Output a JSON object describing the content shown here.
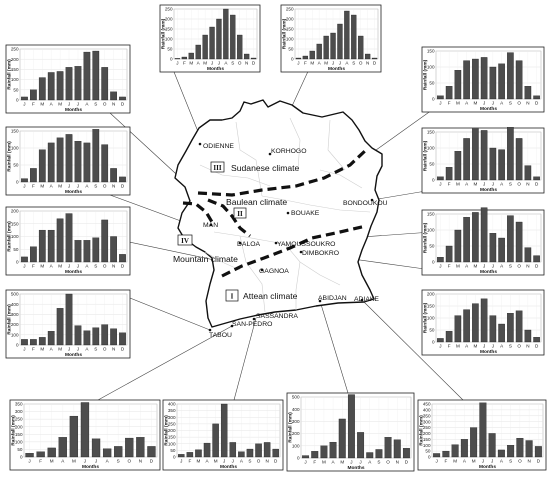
{
  "map": {
    "zones": [
      {
        "numeral": "III",
        "name": "Sudanese climate"
      },
      {
        "numeral": "II",
        "name": "Baulean climate"
      },
      {
        "numeral": "IV",
        "name": "Mountain climate"
      },
      {
        "numeral": "I",
        "name": "Attean climate"
      }
    ],
    "cities": [
      "ODIENNE",
      "KORHOGO",
      "BOUAKE",
      "BONDOUKOU",
      "MAN",
      "DALOA",
      "YAMOUSSOUKRO",
      "DIMBOKRO",
      "GAGNOA",
      "ABIDJAN",
      "ADIAKE",
      "SASSANDRA",
      "SAN-PEDRO",
      "TABOU"
    ]
  },
  "chart_data": [
    {
      "type": "bar",
      "station": "ODIENNE",
      "xlabel": "Months",
      "ylabel": "Rainfall (mm)",
      "ylim": [
        0,
        250
      ],
      "yticks": [
        0,
        50,
        100,
        150,
        200,
        250
      ],
      "categories": [
        "J",
        "F",
        "M",
        "A",
        "M",
        "J",
        "J",
        "A",
        "S",
        "O",
        "N",
        "D"
      ],
      "values": [
        3,
        10,
        30,
        70,
        120,
        160,
        200,
        250,
        220,
        120,
        25,
        5
      ]
    },
    {
      "type": "bar",
      "station": "KORHOGO",
      "xlabel": "Months",
      "ylabel": "Rainfall (mm)",
      "ylim": [
        0,
        250
      ],
      "yticks": [
        0,
        50,
        100,
        150,
        200,
        250
      ],
      "categories": [
        "J",
        "F",
        "M",
        "A",
        "M",
        "J",
        "J",
        "A",
        "S",
        "O",
        "N",
        "D"
      ],
      "values": [
        5,
        15,
        40,
        75,
        115,
        130,
        175,
        240,
        220,
        115,
        25,
        5
      ]
    },
    {
      "type": "bar",
      "station": "MAN",
      "xlabel": "Months",
      "ylabel": "Rainfall (mm)",
      "ylim": [
        0,
        250
      ],
      "yticks": [
        0,
        50,
        100,
        150,
        200,
        250
      ],
      "categories": [
        "J",
        "F",
        "M",
        "A",
        "M",
        "J",
        "J",
        "A",
        "S",
        "O",
        "N",
        "D"
      ],
      "values": [
        15,
        50,
        110,
        135,
        140,
        160,
        165,
        235,
        240,
        160,
        40,
        15
      ]
    },
    {
      "type": "bar",
      "station": "DALOA",
      "xlabel": "Months",
      "ylabel": "Rainfall (mm)",
      "ylim": [
        0,
        150
      ],
      "yticks": [
        0,
        50,
        100,
        150
      ],
      "categories": [
        "J",
        "F",
        "M",
        "A",
        "M",
        "J",
        "J",
        "A",
        "S",
        "O",
        "N",
        "D"
      ],
      "values": [
        10,
        40,
        95,
        115,
        130,
        140,
        120,
        115,
        155,
        110,
        40,
        15
      ]
    },
    {
      "type": "bar",
      "station": "GAGNOA",
      "xlabel": "Months",
      "ylabel": "Rainfall (mm)",
      "ylim": [
        0,
        200
      ],
      "yticks": [
        0,
        50,
        100,
        150,
        200
      ],
      "categories": [
        "J",
        "F",
        "M",
        "A",
        "M",
        "J",
        "J",
        "A",
        "S",
        "O",
        "N",
        "D"
      ],
      "values": [
        20,
        60,
        125,
        125,
        170,
        190,
        85,
        85,
        95,
        165,
        100,
        30
      ]
    },
    {
      "type": "bar",
      "station": "TABOU",
      "xlabel": "Months",
      "ylabel": "Rainfall (mm)",
      "ylim": [
        0,
        500
      ],
      "yticks": [
        0,
        100,
        200,
        300,
        400,
        500
      ],
      "categories": [
        "J",
        "F",
        "M",
        "A",
        "M",
        "J",
        "J",
        "A",
        "S",
        "O",
        "N",
        "D"
      ],
      "values": [
        55,
        55,
        75,
        135,
        360,
        500,
        190,
        140,
        170,
        200,
        160,
        120
      ]
    },
    {
      "type": "bar",
      "station": "BONDOUKOU",
      "xlabel": "Months",
      "ylabel": "Rainfall (mm)",
      "ylim": [
        0,
        150
      ],
      "yticks": [
        0,
        50,
        100,
        150
      ],
      "categories": [
        "J",
        "F",
        "M",
        "A",
        "M",
        "J",
        "J",
        "A",
        "S",
        "O",
        "N",
        "D"
      ],
      "values": [
        10,
        40,
        90,
        120,
        125,
        130,
        100,
        110,
        145,
        120,
        40,
        10
      ]
    },
    {
      "type": "bar",
      "station": "BOUAKE",
      "xlabel": "Months",
      "ylabel": "Rainfall (mm)",
      "ylim": [
        0,
        150
      ],
      "yticks": [
        0,
        50,
        100,
        150
      ],
      "categories": [
        "J",
        "F",
        "M",
        "A",
        "M",
        "J",
        "J",
        "A",
        "S",
        "O",
        "N",
        "D"
      ],
      "values": [
        10,
        40,
        90,
        130,
        160,
        155,
        100,
        95,
        165,
        130,
        45,
        10
      ]
    },
    {
      "type": "bar",
      "station": "YAMOUSSOUKRO",
      "xlabel": "Months",
      "ylabel": "Rainfall (mm)",
      "ylim": [
        0,
        150
      ],
      "yticks": [
        0,
        50,
        100,
        150
      ],
      "categories": [
        "J",
        "F",
        "M",
        "A",
        "M",
        "J",
        "J",
        "A",
        "S",
        "O",
        "N",
        "D"
      ],
      "values": [
        15,
        50,
        100,
        140,
        155,
        170,
        90,
        75,
        145,
        125,
        45,
        20
      ]
    },
    {
      "type": "bar",
      "station": "DIMBOKRO",
      "xlabel": "Months",
      "ylabel": "Rainfall (mm)",
      "ylim": [
        0,
        200
      ],
      "yticks": [
        0,
        50,
        100,
        150,
        200
      ],
      "categories": [
        "J",
        "F",
        "M",
        "A",
        "M",
        "J",
        "J",
        "A",
        "S",
        "O",
        "N",
        "D"
      ],
      "values": [
        15,
        45,
        110,
        135,
        160,
        180,
        110,
        75,
        120,
        130,
        50,
        20
      ]
    },
    {
      "type": "bar",
      "station": "SAN-PEDRO",
      "xlabel": "Months",
      "ylabel": "Rainfall (mm)",
      "ylim": [
        0,
        350
      ],
      "yticks": [
        0,
        50,
        100,
        150,
        200,
        250,
        300,
        350
      ],
      "categories": [
        "J",
        "F",
        "M",
        "A",
        "M",
        "J",
        "J",
        "A",
        "S",
        "O",
        "N",
        "D"
      ],
      "values": [
        25,
        35,
        60,
        130,
        270,
        360,
        120,
        55,
        70,
        125,
        130,
        70
      ]
    },
    {
      "type": "bar",
      "station": "SASSANDRA",
      "xlabel": "Months",
      "ylabel": "Rainfall (mm)",
      "ylim": [
        0,
        400
      ],
      "yticks": [
        0,
        50,
        100,
        150,
        200,
        250,
        300,
        350,
        400
      ],
      "categories": [
        "J",
        "F",
        "M",
        "A",
        "M",
        "J",
        "J",
        "A",
        "S",
        "O",
        "N",
        "D"
      ],
      "values": [
        20,
        35,
        55,
        105,
        250,
        400,
        110,
        40,
        60,
        100,
        110,
        60
      ]
    },
    {
      "type": "bar",
      "station": "ABIDJAN",
      "xlabel": "Months",
      "ylabel": "Rainfall (mm)",
      "ylim": [
        0,
        500
      ],
      "yticks": [
        0,
        100,
        200,
        300,
        400,
        500
      ],
      "categories": [
        "J",
        "F",
        "M",
        "A",
        "M",
        "J",
        "J",
        "A",
        "S",
        "O",
        "N",
        "D"
      ],
      "values": [
        20,
        55,
        100,
        130,
        320,
        520,
        210,
        45,
        70,
        170,
        150,
        80
      ]
    },
    {
      "type": "bar",
      "station": "ADIAKE",
      "xlabel": "Months",
      "ylabel": "Rainfall (mm)",
      "ylim": [
        0,
        450
      ],
      "yticks": [
        0,
        50,
        100,
        150,
        200,
        250,
        300,
        350,
        400,
        450
      ],
      "categories": [
        "J",
        "F",
        "M",
        "A",
        "M",
        "J",
        "J",
        "A",
        "S",
        "O",
        "N",
        "D"
      ],
      "values": [
        30,
        50,
        105,
        150,
        250,
        460,
        200,
        60,
        100,
        160,
        140,
        90
      ]
    }
  ]
}
